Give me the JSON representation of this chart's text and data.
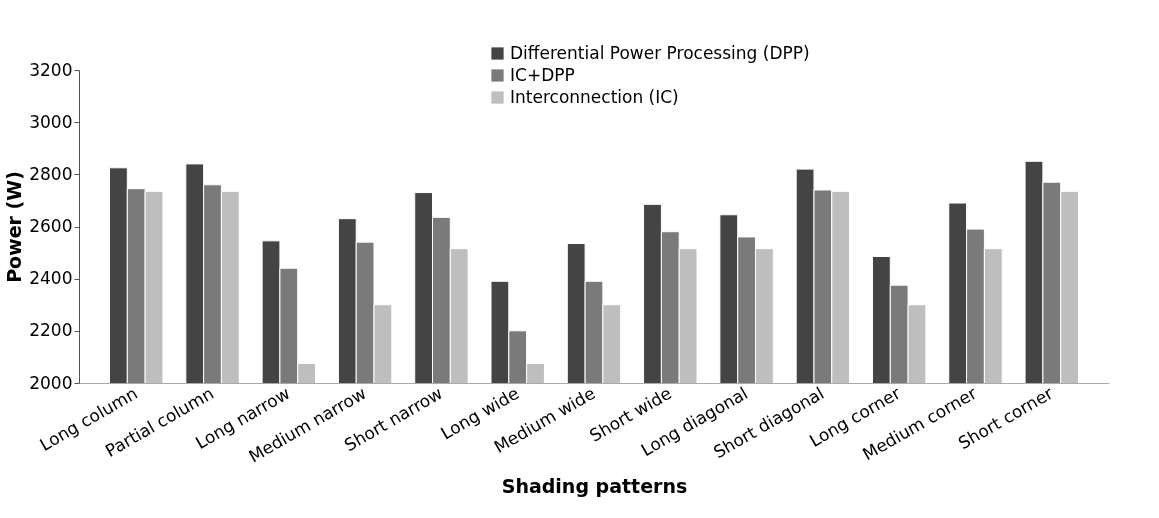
{
  "chart_data": {
    "type": "bar",
    "xlabel": "Shading patterns",
    "ylabel": "Power (W)",
    "categories": [
      "Long column",
      "Partial column",
      "Long narrow",
      "Medium narrow",
      "Short narrow",
      "Long wide",
      "Medium wide",
      "Short wide",
      "Long diagonal",
      "Short diagonal",
      "Long corner",
      "Medium corner",
      "Short corner"
    ],
    "series": [
      {
        "name": "Differential Power Processing (DPP)",
        "color": "#444444",
        "values": [
          2825,
          2840,
          2545,
          2630,
          2730,
          2390,
          2535,
          2685,
          2645,
          2820,
          2485,
          2690,
          2850
        ]
      },
      {
        "name": "IC+DPP",
        "color": "#7a7a7a",
        "values": [
          2745,
          2760,
          2440,
          2540,
          2635,
          2200,
          2390,
          2580,
          2560,
          2740,
          2375,
          2590,
          2770
        ]
      },
      {
        "name": "Interconnection (IC)",
        "color": "#bebebe",
        "values": [
          2735,
          2735,
          2075,
          2300,
          2515,
          2075,
          2300,
          2515,
          2515,
          2735,
          2300,
          2515,
          2735
        ]
      }
    ],
    "ylim": [
      2000,
      3200
    ],
    "yticks": [
      2000,
      2200,
      2400,
      2600,
      2800,
      3000,
      3200
    ],
    "grid": false,
    "legend": "top"
  }
}
